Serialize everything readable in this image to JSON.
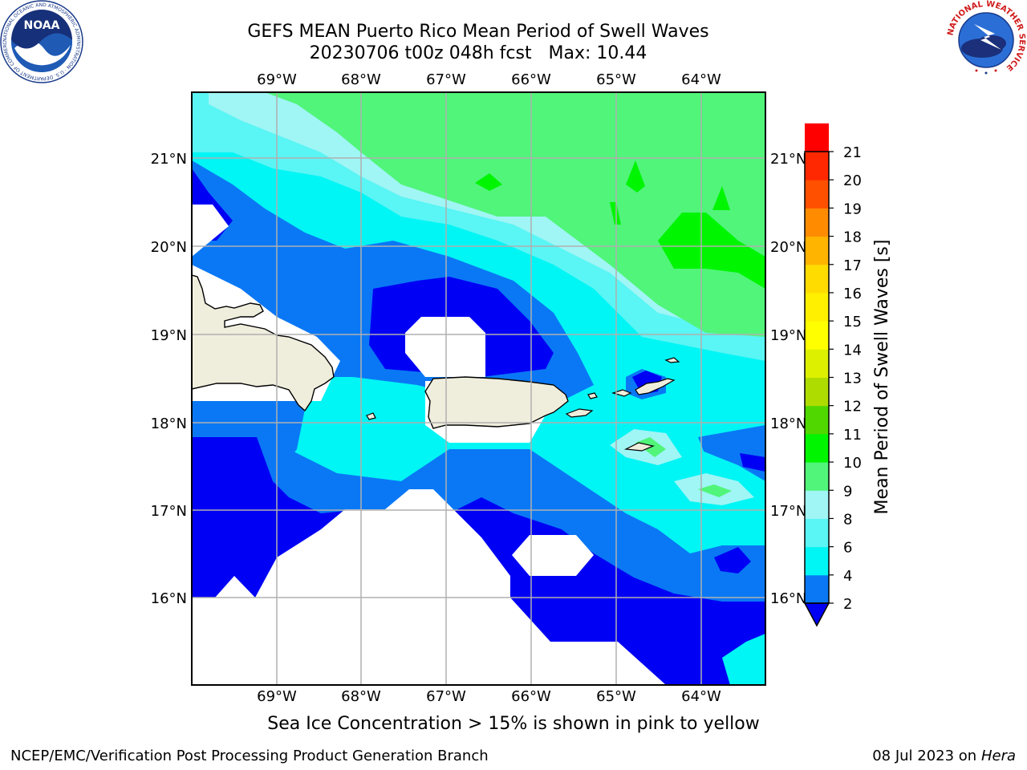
{
  "title": {
    "line1": "GEFS MEAN Puerto Rico Mean Period of Swell Waves",
    "line2": "20230706 t00z 048h fcst   Max: 10.44"
  },
  "map": {
    "lon_ticks": [
      "69°W",
      "68°W",
      "67°W",
      "66°W",
      "65°W",
      "64°W"
    ],
    "lat_ticks": [
      "21°N",
      "20°N",
      "19°N",
      "18°N",
      "17°N",
      "16°N"
    ],
    "colors": {
      "land": "#efeddc",
      "c2_4": "#0000f5",
      "c4_6": "#0a78f5",
      "c6_8": "#00f5f5",
      "c8_9": "#5af5f5",
      "c9_10": "#a0f5f5",
      "c10_11": "#50f57a",
      "c11_12": "#00f500",
      "grid": "#b0b0b0"
    }
  },
  "colorbar": {
    "title": "Mean Period of Swell Waves [s]",
    "levels": [
      2,
      4,
      6,
      8,
      9,
      10,
      11,
      12,
      13,
      14,
      15,
      16,
      17,
      18,
      19,
      20,
      21
    ],
    "colors": [
      "#0a78f5",
      "#00f5f5",
      "#5af5f5",
      "#a0f5f5",
      "#50f57a",
      "#00f500",
      "#50d700",
      "#afdc00",
      "#dcf000",
      "#ffff00",
      "#fff000",
      "#ffdc00",
      "#ffb400",
      "#ff8c00",
      "#ff5000",
      "#ff2800",
      "#ff0000"
    ],
    "under_color": "#0000f5"
  },
  "footer": {
    "note": "Sea Ice Concentration > 15% is shown in pink to yellow",
    "credit": "NCEP/EMC/Verification Post Processing Product Generation Branch",
    "date": "08 Jul 2023 on",
    "machine": "Hera"
  },
  "logos": {
    "noaa_text": "NOAA",
    "noaa_ring": "NATIONAL OCEANIC AND ATMOSPHERIC ADMINISTRATION · U.S. DEPARTMENT OF COMMERCE",
    "nws_ring": "NATIONAL WEATHER SERVICE"
  }
}
